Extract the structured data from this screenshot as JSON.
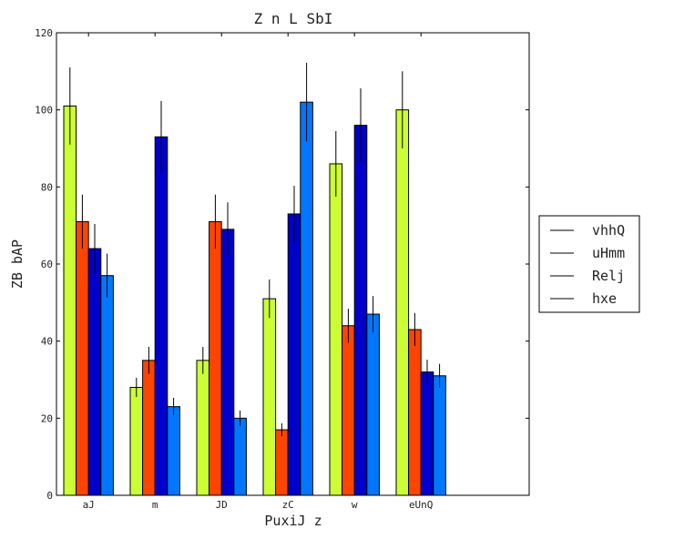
{
  "chart_data": {
    "type": "bar",
    "title": "Z n L SbI",
    "xlabel": "PuxiJ z",
    "ylabel": "ZB bAP",
    "ylim": [
      0,
      120
    ],
    "yticks": [
      0,
      20,
      40,
      60,
      80,
      100,
      120
    ],
    "categories": [
      "aJ",
      "m",
      "JD",
      "zC",
      "w",
      "eUnQ"
    ],
    "series": [
      {
        "name": "vhhQ",
        "color": "#ccff33",
        "values": [
          101,
          28,
          35,
          51,
          86,
          100
        ],
        "errors": [
          10,
          2.5,
          3.5,
          5,
          8.5,
          10
        ]
      },
      {
        "name": "uHmm",
        "color": "#ff4400",
        "values": [
          71,
          35,
          71,
          17,
          44,
          43
        ],
        "errors": [
          7,
          3.5,
          7,
          1.7,
          4.4,
          4.3
        ]
      },
      {
        "name": "Relj",
        "color": "#0000cc",
        "values": [
          64,
          93,
          69,
          73,
          96,
          32
        ],
        "errors": [
          6.4,
          9.3,
          7,
          7.3,
          9.6,
          3.2
        ]
      },
      {
        "name": "hxe",
        "color": "#0077ff",
        "values": [
          57,
          23,
          20,
          102,
          47,
          31
        ],
        "errors": [
          5.7,
          2.3,
          2,
          10.2,
          4.7,
          3.1
        ]
      }
    ],
    "grid": false,
    "legend": "right"
  }
}
